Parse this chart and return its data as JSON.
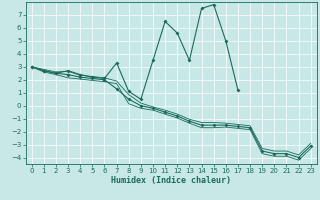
{
  "xlabel": "Humidex (Indice chaleur)",
  "x": [
    0,
    1,
    2,
    3,
    4,
    5,
    6,
    7,
    8,
    9,
    10,
    11,
    12,
    13,
    14,
    15,
    16,
    17,
    18,
    19,
    20,
    21,
    22,
    23
  ],
  "line_spiky": [
    3.0,
    2.7,
    2.5,
    2.7,
    2.4,
    2.2,
    2.1,
    3.3,
    1.1,
    0.5,
    3.5,
    6.5,
    5.6,
    3.5,
    7.5,
    7.8,
    5.0,
    1.2,
    null,
    null,
    null,
    null,
    null,
    null
  ],
  "line_main": [
    3.0,
    2.7,
    2.5,
    2.4,
    2.2,
    2.1,
    2.0,
    1.3,
    0.5,
    0.0,
    -0.2,
    -0.5,
    -0.8,
    -1.2,
    -1.5,
    -1.5,
    -1.5,
    -1.6,
    -1.7,
    -3.5,
    -3.7,
    -3.7,
    -4.0,
    -3.1
  ],
  "line_upper": [
    3.0,
    2.8,
    2.6,
    2.65,
    2.35,
    2.25,
    2.15,
    1.9,
    0.85,
    0.2,
    -0.1,
    -0.35,
    -0.65,
    -1.05,
    -1.3,
    -1.3,
    -1.35,
    -1.45,
    -1.55,
    -3.3,
    -3.5,
    -3.5,
    -3.8,
    -2.9
  ],
  "line_lower": [
    3.0,
    2.6,
    2.4,
    2.15,
    2.05,
    1.95,
    1.85,
    1.7,
    0.15,
    -0.2,
    -0.35,
    -0.65,
    -0.95,
    -1.35,
    -1.7,
    -1.7,
    -1.65,
    -1.75,
    -1.85,
    -3.7,
    -3.9,
    -3.9,
    -4.2,
    -3.3
  ],
  "bg_color": "#c8e8e8",
  "line_color": "#1a6b5a",
  "grid_color": "#b0d8d8",
  "ylim": [
    -4.5,
    8.0
  ],
  "yticks": [
    -4,
    -3,
    -2,
    -1,
    0,
    1,
    2,
    3,
    4,
    5,
    6,
    7
  ],
  "xticks": [
    0,
    1,
    2,
    3,
    4,
    5,
    6,
    7,
    8,
    9,
    10,
    11,
    12,
    13,
    14,
    15,
    16,
    17,
    18,
    19,
    20,
    21,
    22,
    23
  ]
}
